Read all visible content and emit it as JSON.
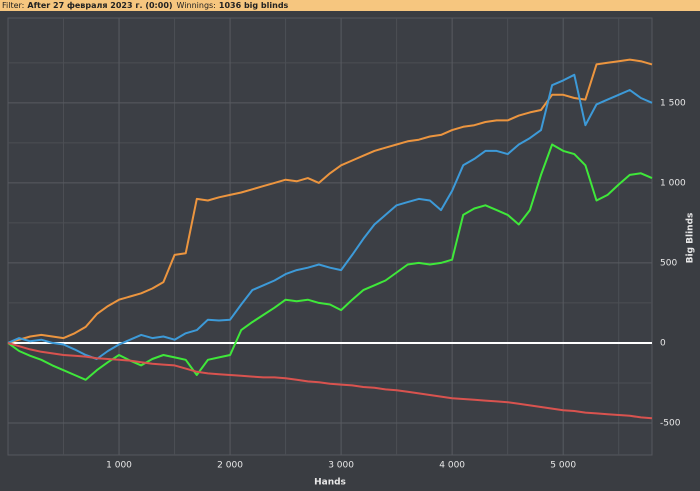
{
  "header": {
    "filter_label": "Filter:",
    "filter_value": "After 27 февраля 2023 г. (0:00)",
    "winnings_label": "Winnings:",
    "winnings_value": "1036 big blinds"
  },
  "chart_data": {
    "type": "line",
    "x_label": "Hands",
    "y_label": "Big Blinds",
    "x": [
      0,
      100,
      200,
      300,
      400,
      500,
      600,
      700,
      800,
      900,
      1000,
      1100,
      1200,
      1300,
      1400,
      1500,
      1600,
      1700,
      1800,
      1900,
      2000,
      2100,
      2200,
      2300,
      2400,
      2500,
      2600,
      2700,
      2800,
      2900,
      3000,
      3100,
      3200,
      3300,
      3400,
      3500,
      3600,
      3700,
      3800,
      3900,
      4000,
      4100,
      4200,
      4300,
      4400,
      4500,
      4600,
      4700,
      4800,
      4900,
      5000,
      5100,
      5200,
      5300,
      5400,
      5500,
      5600,
      5700,
      5800
    ],
    "series": [
      {
        "color": "#ec953f",
        "values": [
          0,
          20,
          40,
          50,
          40,
          30,
          60,
          100,
          180,
          230,
          270,
          290,
          310,
          340,
          380,
          550,
          560,
          900,
          890,
          910,
          925,
          940,
          960,
          980,
          1000,
          1020,
          1010,
          1030,
          1000,
          1060,
          1110,
          1140,
          1170,
          1200,
          1220,
          1240,
          1260,
          1270,
          1290,
          1300,
          1330,
          1350,
          1360,
          1380,
          1390,
          1390,
          1420,
          1440,
          1455,
          1550,
          1550,
          1530,
          1520,
          1740,
          1750,
          1760,
          1770,
          1760,
          1740
        ]
      },
      {
        "color": "#3d9ad8",
        "values": [
          0,
          30,
          10,
          20,
          0,
          -10,
          -40,
          -75,
          -100,
          -50,
          -10,
          20,
          50,
          30,
          40,
          20,
          60,
          80,
          145,
          140,
          145,
          240,
          330,
          360,
          390,
          430,
          455,
          470,
          490,
          470,
          455,
          550,
          650,
          740,
          800,
          860,
          880,
          900,
          890,
          830,
          950,
          1110,
          1150,
          1200,
          1200,
          1180,
          1240,
          1280,
          1330,
          1610,
          1640,
          1675,
          1360,
          1490,
          1520,
          1550,
          1580,
          1530,
          1500
        ]
      },
      {
        "color": "#3fe83a",
        "values": [
          0,
          -50,
          -80,
          -105,
          -140,
          -170,
          -200,
          -230,
          -170,
          -120,
          -75,
          -110,
          -140,
          -100,
          -75,
          -90,
          -105,
          -200,
          -105,
          -90,
          -75,
          80,
          130,
          175,
          220,
          270,
          260,
          270,
          250,
          240,
          205,
          270,
          330,
          360,
          390,
          440,
          490,
          500,
          490,
          500,
          520,
          800,
          840,
          860,
          830,
          800,
          740,
          830,
          1050,
          1240,
          1200,
          1180,
          1110,
          890,
          925,
          990,
          1050,
          1060,
          1030
        ]
      },
      {
        "color": "#d9534f",
        "values": [
          0,
          -20,
          -40,
          -55,
          -65,
          -75,
          -80,
          -85,
          -95,
          -100,
          -105,
          -110,
          -120,
          -130,
          -135,
          -140,
          -160,
          -180,
          -190,
          -195,
          -200,
          -205,
          -210,
          -215,
          -215,
          -220,
          -230,
          -240,
          -245,
          -255,
          -260,
          -265,
          -275,
          -280,
          -290,
          -295,
          -305,
          -315,
          -325,
          -335,
          -345,
          -350,
          -355,
          -360,
          -365,
          -370,
          -380,
          -390,
          -400,
          -410,
          -420,
          -425,
          -435,
          -440,
          -445,
          -450,
          -455,
          -465,
          -470
        ]
      }
    ],
    "xlim": [
      0,
      5800
    ],
    "xticks": [
      {
        "value": 1000,
        "label": "1 000"
      },
      {
        "value": 2000,
        "label": "2 000"
      },
      {
        "value": 3000,
        "label": "3 000"
      },
      {
        "value": 4000,
        "label": "4 000"
      },
      {
        "value": 5000,
        "label": "5 000"
      }
    ],
    "x_minor_grid": [
      500,
      1500,
      2500,
      3500,
      4500,
      5500
    ],
    "ylim": [
      -700,
      2030
    ],
    "yticks": [
      -500,
      0,
      500,
      {
        "value": 1000,
        "label": "1 000"
      },
      {
        "value": 1500,
        "label": "1 500"
      }
    ],
    "y_minor_grid": [
      -250,
      250,
      750,
      1250,
      1750
    ],
    "grid": true
  }
}
